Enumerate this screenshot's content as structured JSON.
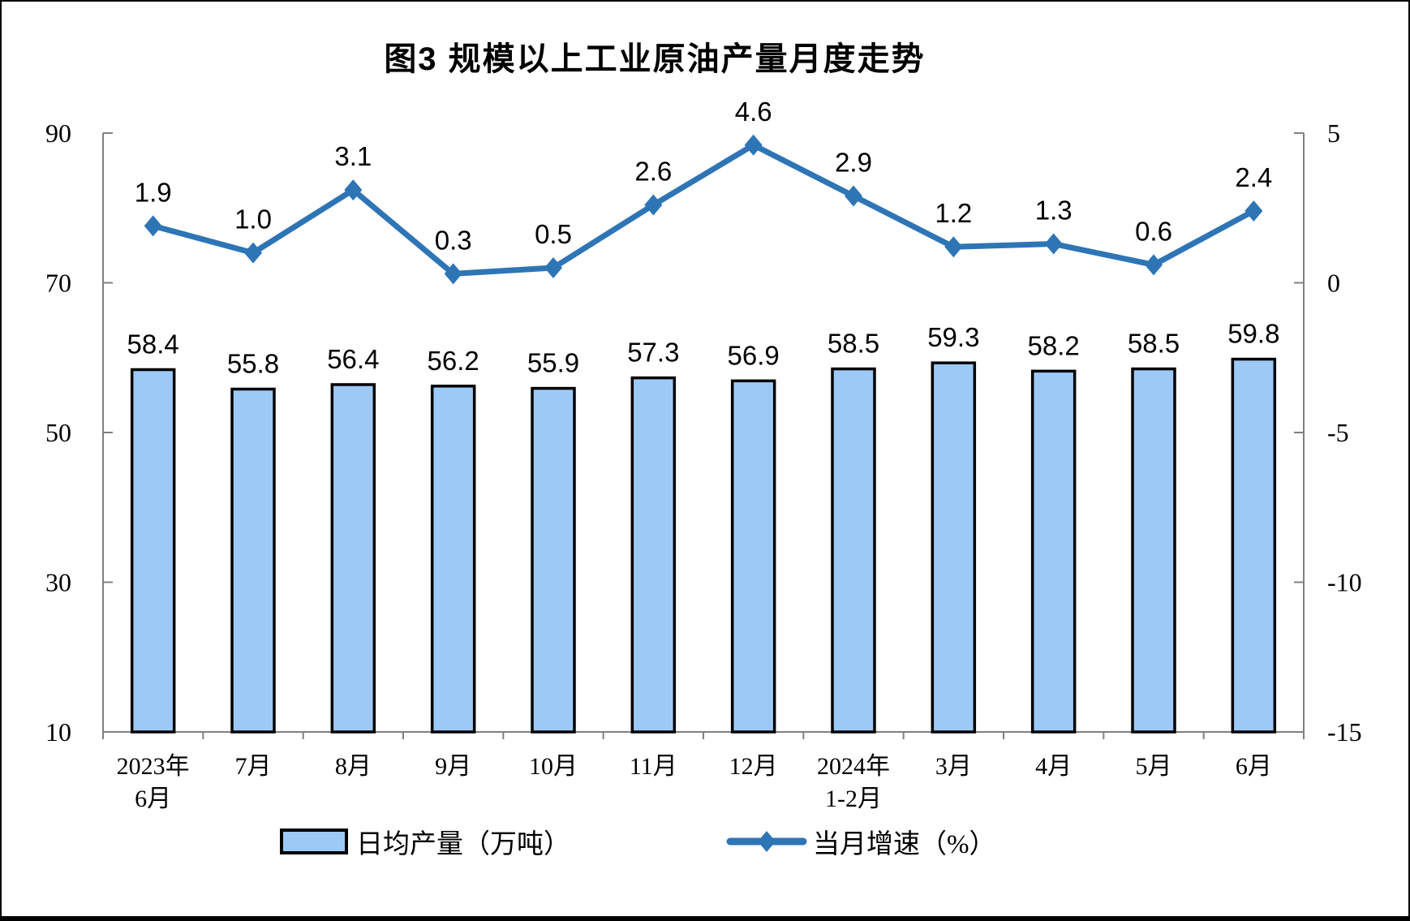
{
  "title": "图3 规模以上工业原油产量月度走势",
  "chart_data": {
    "type": "bar",
    "subtype": "bar+line combo",
    "title": "图3 规模以上工业原油产量月度走势",
    "categories": [
      "2023年\n6月",
      "7月",
      "8月",
      "9月",
      "10月",
      "11月",
      "12月",
      "2024年\n1-2月",
      "3月",
      "4月",
      "5月",
      "6月"
    ],
    "series": [
      {
        "name": "日均产量（万吨）",
        "type": "bar",
        "axis": "left",
        "values": [
          58.4,
          55.8,
          56.4,
          56.2,
          55.9,
          57.3,
          56.9,
          58.5,
          59.3,
          58.2,
          58.5,
          59.8
        ]
      },
      {
        "name": "当月增速（%）",
        "type": "line",
        "axis": "right",
        "values": [
          1.9,
          1.0,
          3.1,
          0.3,
          0.5,
          2.6,
          4.6,
          2.9,
          1.2,
          1.3,
          0.6,
          2.4
        ]
      }
    ],
    "left_axis": {
      "ticks": [
        90,
        70,
        50,
        30,
        10
      ],
      "min": 10,
      "max": 90
    },
    "right_axis": {
      "ticks": [
        5,
        0,
        -5,
        -10,
        -15
      ],
      "min": -15,
      "max": 5
    },
    "legend": [
      {
        "label": "日均产量（万吨）",
        "marker": "bar-swatch"
      },
      {
        "label": "当月增速（%）",
        "marker": "line-swatch"
      }
    ],
    "grid": false,
    "legend_position": "bottom",
    "colors": {
      "bar_fill": "#9DC9F7",
      "bar_stroke": "#000000",
      "line": "#2E75B6",
      "axis": "#808080",
      "text": "#000000",
      "background": "#FFFFFF"
    }
  }
}
